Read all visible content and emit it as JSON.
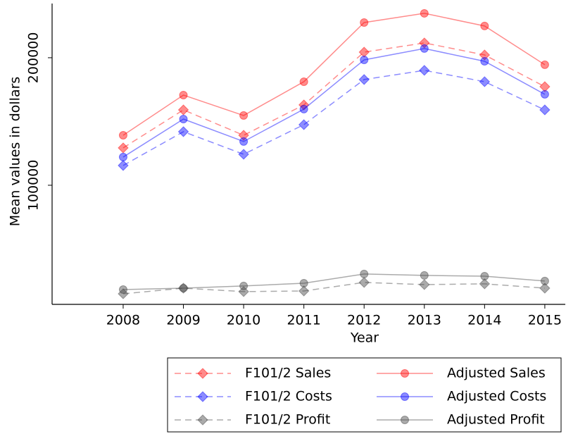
{
  "chart_data": {
    "type": "line",
    "xlabel": "Year",
    "ylabel": "Mean values in dollars",
    "x": [
      2008,
      2009,
      2010,
      2011,
      2012,
      2013,
      2014,
      2015
    ],
    "xlim": [
      2006.82,
      2015.34
    ],
    "xticks": [
      2008,
      2009,
      2010,
      2011,
      2012,
      2013,
      2014,
      2015
    ],
    "ylim": [
      6600,
      242500
    ],
    "yticks": [
      100000,
      200000
    ],
    "alpha": 0.45,
    "legend": "below",
    "series": [
      {
        "name": "F101/2 Sales",
        "color": "#ff0000",
        "linestyle": "dashed",
        "marker": "diamond",
        "values": [
          129300,
          159100,
          139200,
          163000,
          204400,
          211600,
          202200,
          177300
        ]
      },
      {
        "name": "F101/2 Costs",
        "color": "#0000ff",
        "linestyle": "dashed",
        "marker": "diamond",
        "values": [
          115500,
          142000,
          124300,
          147500,
          182900,
          190100,
          181200,
          159100
        ]
      },
      {
        "name": "F101/2 Profit",
        "color": "#444444",
        "linestyle": "dashed",
        "marker": "diamond",
        "values": [
          14900,
          19300,
          16600,
          17100,
          23800,
          22100,
          22700,
          19300
        ]
      },
      {
        "name": "Adjusted Sales",
        "color": "#ff0000",
        "linestyle": "solid",
        "marker": "circle",
        "values": [
          139200,
          170700,
          154700,
          181200,
          227600,
          234800,
          224900,
          194500
        ]
      },
      {
        "name": "Adjusted Costs",
        "color": "#0000ff",
        "linestyle": "solid",
        "marker": "circle",
        "values": [
          122100,
          151900,
          134300,
          159700,
          198300,
          207200,
          197200,
          171300
        ]
      },
      {
        "name": "Adjusted Profit",
        "color": "#444444",
        "linestyle": "solid",
        "marker": "circle",
        "values": [
          18200,
          19300,
          21000,
          23200,
          30400,
          29300,
          28700,
          24900
        ]
      }
    ]
  }
}
